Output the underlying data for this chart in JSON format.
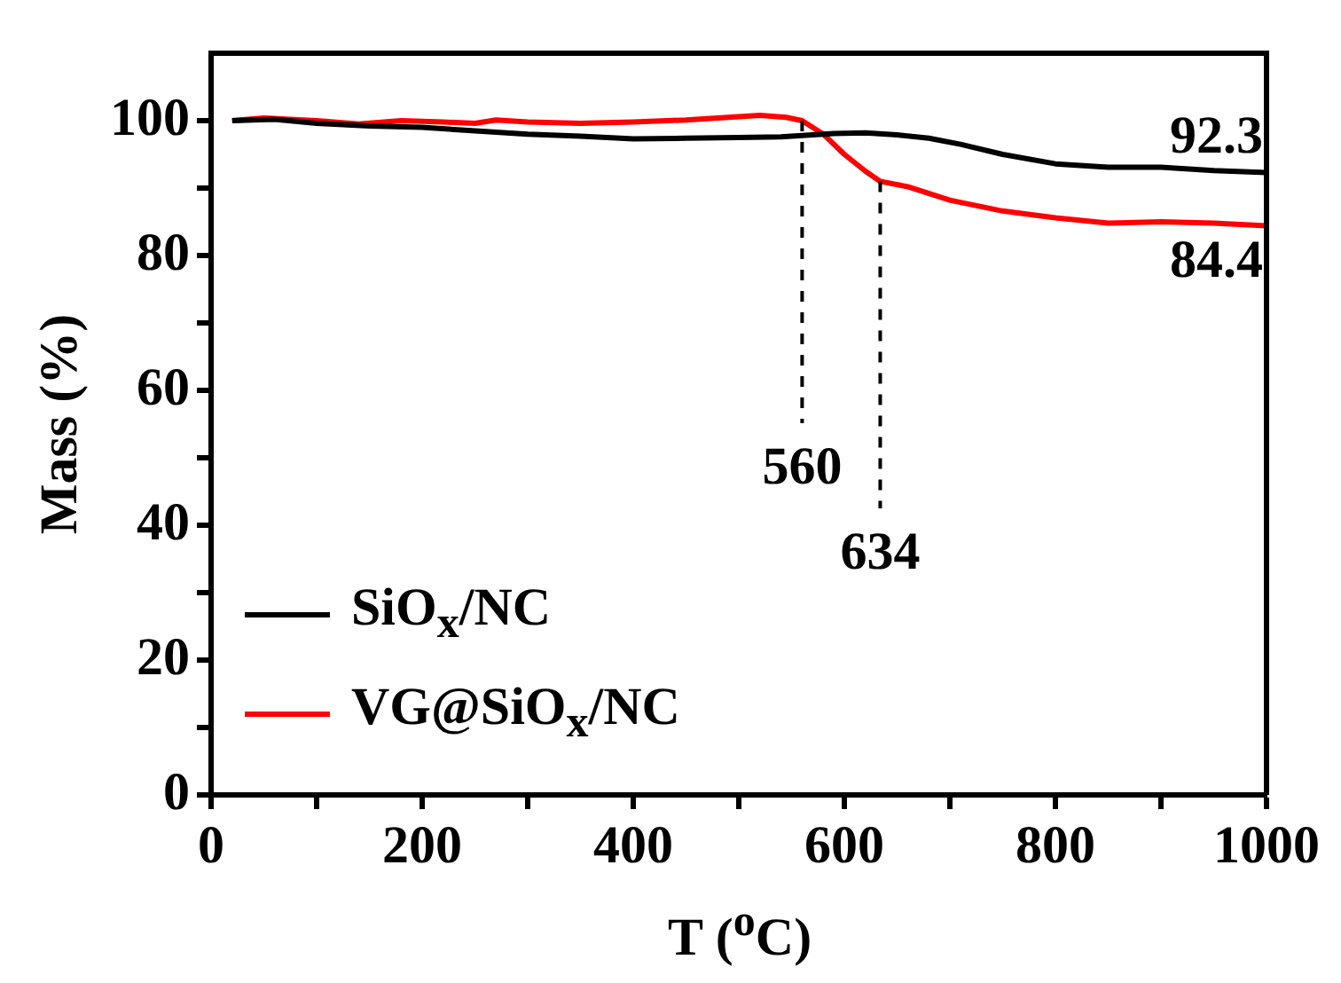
{
  "chart_data": {
    "type": "line",
    "xlabel": "T ($^{o}$C)",
    "ylabel": "Mass (%)",
    "xlim": [
      0,
      1000
    ],
    "ylim": [
      0,
      110
    ],
    "xticks": [
      0,
      {
        "value": 100,
        "label": null
      },
      200,
      {
        "value": 300,
        "label": null
      },
      400,
      {
        "value": 500,
        "label": null
      },
      600,
      {
        "value": 700,
        "label": null
      },
      800,
      {
        "value": 900,
        "label": null
      },
      1000
    ],
    "yticks": [
      0,
      {
        "value": 10,
        "label": null
      },
      20,
      {
        "value": 30,
        "label": null
      },
      40,
      {
        "value": 50,
        "label": null
      },
      60,
      {
        "value": 70,
        "label": null
      },
      80,
      {
        "value": 90,
        "label": null
      },
      100
    ],
    "legend": "bottom left",
    "grid": false,
    "marker": "none",
    "line_style": "solid",
    "series": [
      {
        "name": "SiO$_{x}$/NC",
        "color": "#000000",
        "x": [
          20,
          60,
          100,
          150,
          200,
          250,
          300,
          350,
          400,
          450,
          500,
          540,
          560,
          590,
          620,
          650,
          680,
          710,
          750,
          800,
          850,
          900,
          950,
          1000
        ],
        "values": [
          100,
          100.2,
          99.6,
          99.2,
          99,
          98.5,
          98,
          97.7,
          97.3,
          97.4,
          97.5,
          97.6,
          97.8,
          98.1,
          98.2,
          97.9,
          97.4,
          96.5,
          95,
          93.6,
          93.1,
          93.1,
          92.6,
          92.3
        ]
      },
      {
        "name": "VG@SiO$_{x}$/NC",
        "color": "#ff0000",
        "x": [
          20,
          50,
          100,
          140,
          180,
          220,
          250,
          270,
          300,
          350,
          400,
          450,
          500,
          520,
          545,
          560,
          580,
          600,
          620,
          634,
          660,
          700,
          750,
          800,
          850,
          900,
          950,
          1000
        ],
        "values": [
          100,
          100.4,
          100,
          99.5,
          100,
          99.8,
          99.6,
          100.1,
          99.8,
          99.6,
          99.8,
          100.1,
          100.6,
          100.8,
          100.5,
          100,
          98,
          95,
          92.5,
          91,
          90.2,
          88.2,
          86.6,
          85.6,
          84.8,
          85,
          84.8,
          84.4
        ]
      }
    ],
    "ref_lines": [
      {
        "axis": "x",
        "value": 560,
        "label": "560",
        "line_style": "dashed",
        "color": "#000000"
      },
      {
        "axis": "x",
        "value": 634,
        "label": "634",
        "line_style": "dashed",
        "color": "#000000"
      }
    ],
    "annotations": [
      {
        "text": "92.3",
        "x": 1000,
        "y": 92.3
      },
      {
        "text": "84.4",
        "x": 1000,
        "y": 84.4
      }
    ]
  }
}
